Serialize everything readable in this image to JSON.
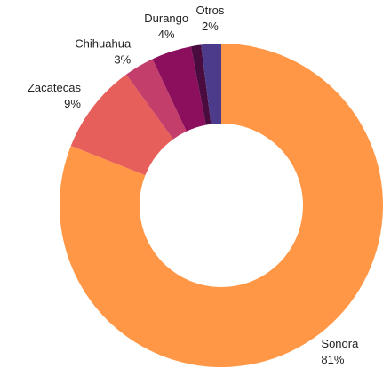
{
  "chart_data": {
    "type": "donut",
    "categories": [
      "Sonora",
      "Zacatecas",
      "Chihuahua",
      "Durango",
      null,
      "Otros"
    ],
    "values": [
      81,
      9,
      3,
      4,
      1,
      2
    ],
    "value_labels": [
      "81%",
      "9%",
      "3%",
      "4%",
      null,
      "2%"
    ],
    "colors": [
      "#ff9747",
      "#e65f5a",
      "#c43e6b",
      "#8c0f5d",
      "#4a0b3e",
      "#4c3b8b"
    ]
  }
}
